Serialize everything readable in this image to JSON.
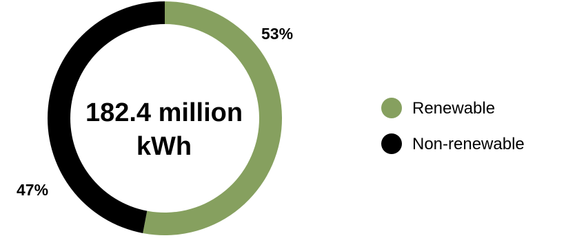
{
  "chart_data": {
    "type": "pie",
    "variant": "donut",
    "center_label_lines": [
      "182.4 million",
      "kWh"
    ],
    "slices": [
      {
        "name": "Renewable",
        "value": 53,
        "label": "53%",
        "color": "#86a05f"
      },
      {
        "name": "Non-renewable",
        "value": 47,
        "label": "47%",
        "color": "#000000"
      }
    ],
    "legend": {
      "placement": "right",
      "items": [
        {
          "label": "Renewable",
          "color": "#86a05f"
        },
        {
          "label": "Non-renewable",
          "color": "#000000"
        }
      ]
    }
  }
}
